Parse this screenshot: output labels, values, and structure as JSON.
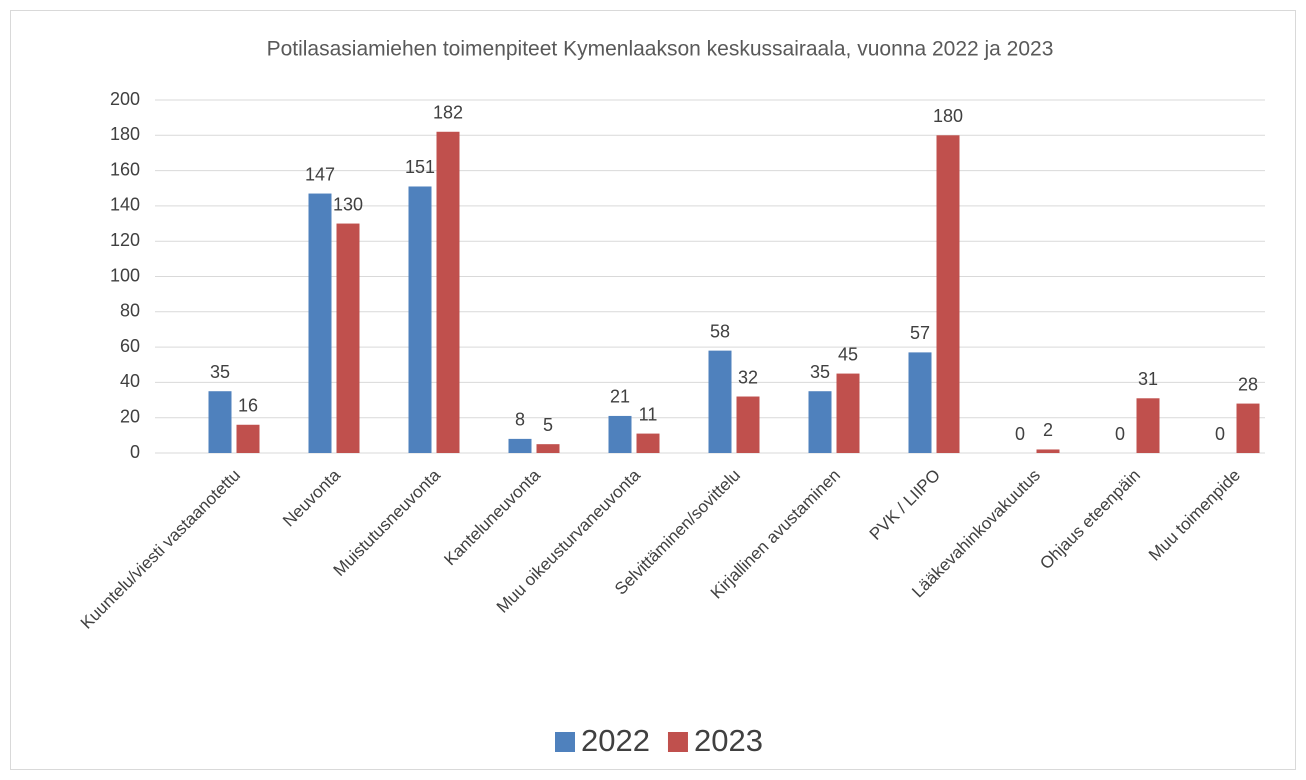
{
  "chart_data": {
    "type": "bar",
    "title": "Potilasasiamiehen toimenpiteet Kymenlaakson keskussairaala, vuonna 2022 ja 2023",
    "categories": [
      "Kuuntelu/viesti vastaanotettu",
      "Neuvonta",
      "Muistutusneuvonta",
      "Kanteluneuvonta",
      "Muu oikeusturvaneuvonta",
      "Selvittäminen/sovittelu",
      "Kirjallinen avustaminen",
      "PVK / LIIPO",
      "Lääkevahinkovakuutus",
      "Ohjaus eteenpäin",
      "Muu toimenpide"
    ],
    "series": [
      {
        "name": "2022",
        "color": "#4f81bd",
        "values": [
          35,
          147,
          151,
          8,
          21,
          58,
          35,
          57,
          0,
          0,
          0
        ]
      },
      {
        "name": "2023",
        "color": "#c0504d",
        "values": [
          16,
          130,
          182,
          5,
          11,
          32,
          45,
          180,
          2,
          31,
          28
        ]
      }
    ],
    "ylim": [
      0,
      200
    ],
    "yticks": [
      0,
      20,
      40,
      60,
      80,
      100,
      120,
      140,
      160,
      180,
      200
    ],
    "grid": true,
    "legend": "bottom"
  }
}
